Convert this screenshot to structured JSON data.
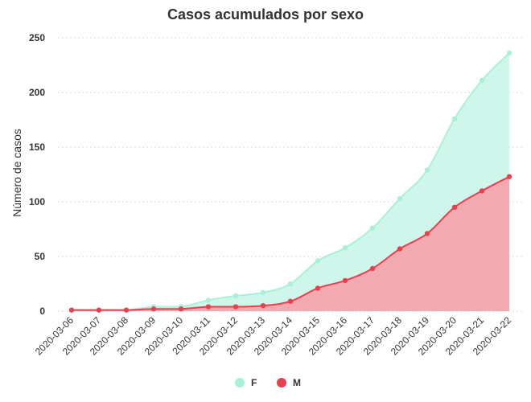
{
  "chart_data": {
    "type": "area",
    "title": "Casos acumulados por sexo",
    "xlabel": "",
    "ylabel": "Número de casos",
    "ylim": [
      0,
      250
    ],
    "yticks": [
      0,
      50,
      100,
      150,
      200,
      250
    ],
    "grid": true,
    "legend_placement": "bottom-center",
    "categories": [
      "2020-03-06",
      "2020-03-07",
      "2020-03-08",
      "2020-03-09",
      "2020-03-10",
      "2020-03-11",
      "2020-03-12",
      "2020-03-13",
      "2020-03-14",
      "2020-03-15",
      "2020-03-16",
      "2020-03-17",
      "2020-03-18",
      "2020-03-19",
      "2020-03-20",
      "2020-03-21",
      "2020-03-22"
    ],
    "stacked": false,
    "series": [
      {
        "name": "F",
        "color": "#a8f0d8",
        "values": [
          1,
          1,
          1,
          4,
          4,
          10,
          14,
          17,
          25,
          46,
          58,
          76,
          103,
          129,
          176,
          211,
          236
        ]
      },
      {
        "name": "M",
        "color": "#e8404f",
        "values": [
          1,
          1,
          1,
          2,
          2,
          4,
          4,
          5,
          9,
          21,
          28,
          39,
          57,
          71,
          95,
          110,
          123
        ]
      }
    ]
  }
}
